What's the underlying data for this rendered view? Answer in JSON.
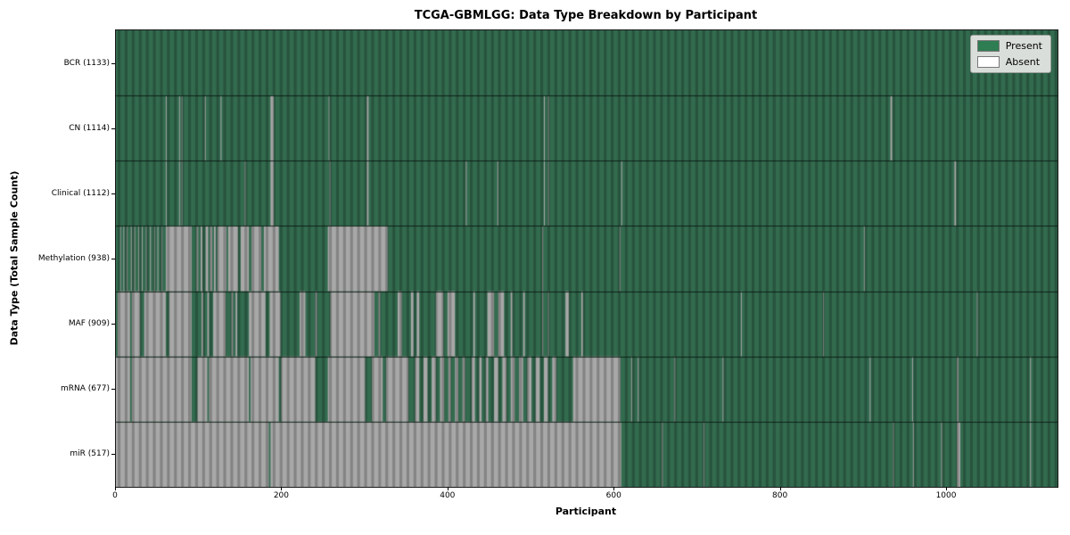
{
  "title": "TCGA-GBMLGG: Data Type Breakdown by Participant",
  "chart_data": {
    "type": "heatmap",
    "subtype": "presence-absence-matrix",
    "title": "TCGA-GBMLGG: Data Type Breakdown by Participant",
    "xlabel": "Participant",
    "ylabel": "Data Type (Total Sample Count)",
    "x_range": [
      0,
      1133
    ],
    "x_ticks": [
      0,
      200,
      400,
      600,
      800,
      1000
    ],
    "grid": false,
    "legend": {
      "position": "upper right",
      "entries": [
        {
          "label": "Present",
          "color": "#2f7d52"
        },
        {
          "label": "Absent",
          "color": "#ffffff"
        }
      ]
    },
    "colors": {
      "present_base": "#336B4F",
      "absent_base": "#A8A8A8",
      "stripe_overlay": "rgba(0,0,0,0.22)",
      "row_divider": "rgba(8,22,15,0.85)",
      "plot_border": "#1a1a1a",
      "legend_background": "#dadeda",
      "legend_border": "#9aa09a"
    },
    "rows": [
      {
        "data_type": "BCR",
        "label": "BCR (1133)",
        "present_count": 1133,
        "absent_runs": []
      },
      {
        "data_type": "CN",
        "label": "CN (1114)",
        "present_count": 1114,
        "absent_runs": [
          [
            60,
            61
          ],
          [
            76,
            77
          ],
          [
            79,
            80
          ],
          [
            107,
            108
          ],
          [
            126,
            127
          ],
          [
            186,
            190
          ],
          [
            256,
            257
          ],
          [
            302,
            304
          ],
          [
            515,
            516
          ],
          [
            520,
            521
          ],
          [
            932,
            934
          ]
        ]
      },
      {
        "data_type": "Clinical",
        "label": "Clinical (1112)",
        "present_count": 1112,
        "absent_runs": [
          [
            60,
            61
          ],
          [
            76,
            77
          ],
          [
            79,
            80
          ],
          [
            155,
            156
          ],
          [
            186,
            190
          ],
          [
            257,
            258
          ],
          [
            302,
            304
          ],
          [
            421,
            422
          ],
          [
            459,
            460
          ],
          [
            515,
            516
          ],
          [
            520,
            521
          ],
          [
            608,
            609
          ],
          [
            1009,
            1011
          ]
        ]
      },
      {
        "data_type": "Methylation",
        "label": "Methylation (938)",
        "present_count": 938,
        "absent_runs": [
          [
            5,
            6
          ],
          [
            9,
            10
          ],
          [
            13,
            14
          ],
          [
            18,
            19
          ],
          [
            22,
            23
          ],
          [
            27,
            28
          ],
          [
            31,
            32
          ],
          [
            36,
            37
          ],
          [
            41,
            42
          ],
          [
            46,
            47
          ],
          [
            50,
            51
          ],
          [
            55,
            56
          ],
          [
            60,
            91
          ],
          [
            97,
            99
          ],
          [
            102,
            104
          ],
          [
            108,
            111
          ],
          [
            113,
            116
          ],
          [
            118,
            120
          ],
          [
            122,
            133
          ],
          [
            135,
            147
          ],
          [
            150,
            160
          ],
          [
            163,
            175
          ],
          [
            178,
            196
          ],
          [
            255,
            327
          ],
          [
            513,
            514
          ],
          [
            606,
            607
          ],
          [
            900,
            901
          ]
        ]
      },
      {
        "data_type": "MAF",
        "label": "MAF (909)",
        "present_count": 909,
        "absent_runs": [
          [
            2,
            17
          ],
          [
            19,
            29
          ],
          [
            34,
            60
          ],
          [
            64,
            91
          ],
          [
            103,
            105
          ],
          [
            110,
            112
          ],
          [
            117,
            132
          ],
          [
            139,
            141
          ],
          [
            144,
            146
          ],
          [
            160,
            180
          ],
          [
            185,
            198
          ],
          [
            221,
            228
          ],
          [
            240,
            242
          ],
          [
            258,
            311
          ],
          [
            316,
            318
          ],
          [
            339,
            344
          ],
          [
            355,
            358
          ],
          [
            362,
            365
          ],
          [
            385,
            394
          ],
          [
            399,
            408
          ],
          [
            430,
            432
          ],
          [
            447,
            455
          ],
          [
            460,
            467
          ],
          [
            475,
            477
          ],
          [
            490,
            492
          ],
          [
            513,
            514
          ],
          [
            520,
            521
          ],
          [
            541,
            545
          ],
          [
            560,
            562
          ],
          [
            752,
            753
          ],
          [
            851,
            852
          ],
          [
            1036,
            1037
          ]
        ]
      },
      {
        "data_type": "mRNA",
        "label": "mRNA (677)",
        "present_count": 677,
        "absent_runs": [
          [
            0,
            17
          ],
          [
            19,
            91
          ],
          [
            98,
            110
          ],
          [
            112,
            160
          ],
          [
            162,
            196
          ],
          [
            199,
            240
          ],
          [
            255,
            300
          ],
          [
            308,
            321
          ],
          [
            325,
            352
          ],
          [
            360,
            365
          ],
          [
            370,
            375
          ],
          [
            380,
            385
          ],
          [
            390,
            395
          ],
          [
            400,
            403
          ],
          [
            408,
            412
          ],
          [
            417,
            420
          ],
          [
            428,
            432
          ],
          [
            437,
            440
          ],
          [
            445,
            448
          ],
          [
            455,
            460
          ],
          [
            465,
            470
          ],
          [
            475,
            480
          ],
          [
            485,
            490
          ],
          [
            495,
            500
          ],
          [
            505,
            510
          ],
          [
            515,
            520
          ],
          [
            525,
            530
          ],
          [
            550,
            607
          ],
          [
            620,
            621
          ],
          [
            628,
            629
          ],
          [
            672,
            673
          ],
          [
            730,
            731
          ],
          [
            907,
            908
          ],
          [
            958,
            959
          ],
          [
            1012,
            1014
          ],
          [
            1100,
            1101
          ]
        ]
      },
      {
        "data_type": "miR",
        "label": "miR (517)",
        "present_count": 517,
        "absent_runs": [
          [
            0,
            184
          ],
          [
            186,
            608
          ],
          [
            657,
            658
          ],
          [
            707,
            708
          ],
          [
            935,
            936
          ],
          [
            959,
            960
          ],
          [
            993,
            994
          ],
          [
            1012,
            1016
          ],
          [
            1100,
            1101
          ]
        ]
      }
    ]
  }
}
